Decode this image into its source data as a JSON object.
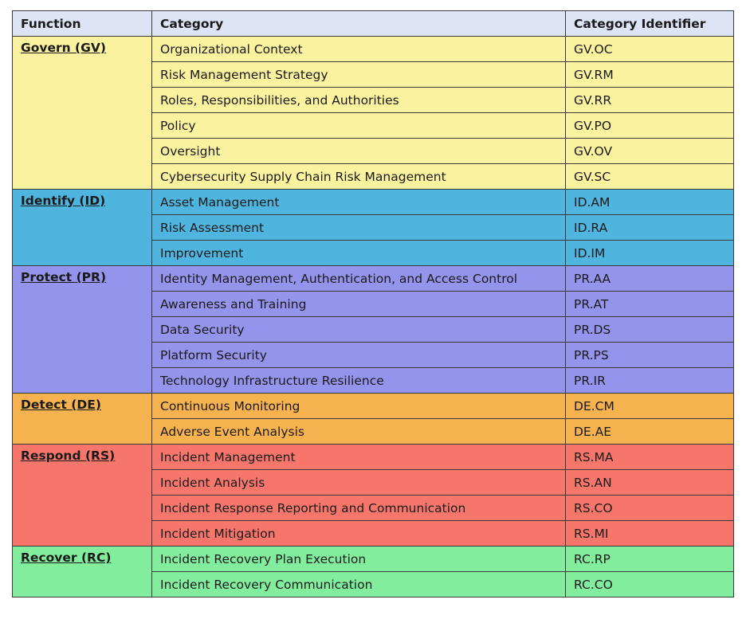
{
  "header": {
    "function": "Function",
    "category": "Category",
    "identifier": "Category Identifier"
  },
  "functions": [
    {
      "key": "gv",
      "label": "Govern (GV)",
      "color": "#fbf2a0",
      "rows": [
        {
          "category": "Organizational Context",
          "id": "GV.OC"
        },
        {
          "category": "Risk Management Strategy",
          "id": "GV.RM"
        },
        {
          "category": "Roles, Responsibilities, and Authorities",
          "id": "GV.RR"
        },
        {
          "category": "Policy",
          "id": "GV.PO"
        },
        {
          "category": "Oversight",
          "id": "GV.OV"
        },
        {
          "category": "Cybersecurity Supply Chain Risk Management",
          "id": "GV.SC"
        }
      ]
    },
    {
      "key": "id",
      "label": "Identify (ID)",
      "color": "#4fb4de",
      "rows": [
        {
          "category": "Asset Management",
          "id": "ID.AM"
        },
        {
          "category": "Risk Assessment",
          "id": "ID.RA"
        },
        {
          "category": "Improvement",
          "id": "ID.IM"
        }
      ]
    },
    {
      "key": "pr",
      "label": "Protect (PR)",
      "color": "#9494ec",
      "rows": [
        {
          "category": "Identity Management, Authentication, and Access Control",
          "id": "PR.AA"
        },
        {
          "category": "Awareness and Training",
          "id": "PR.AT"
        },
        {
          "category": "Data Security",
          "id": "PR.DS"
        },
        {
          "category": "Platform Security",
          "id": "PR.PS"
        },
        {
          "category": "Technology Infrastructure Resilience",
          "id": "PR.IR"
        }
      ]
    },
    {
      "key": "de",
      "label": "Detect (DE)",
      "color": "#f6b24e",
      "rows": [
        {
          "category": "Continuous Monitoring",
          "id": "DE.CM"
        },
        {
          "category": "Adverse Event Analysis",
          "id": "DE.AE"
        }
      ]
    },
    {
      "key": "rs",
      "label": "Respond (RS)",
      "color": "#f6766b",
      "rows": [
        {
          "category": "Incident Management",
          "id": "RS.MA"
        },
        {
          "category": "Incident Analysis",
          "id": "RS.AN"
        },
        {
          "category": "Incident Response Reporting and Communication",
          "id": "RS.CO"
        },
        {
          "category": "Incident Mitigation",
          "id": "RS.MI"
        }
      ]
    },
    {
      "key": "rc",
      "label": "Recover (RC)",
      "color": "#82ee9d",
      "rows": [
        {
          "category": "Incident Recovery Plan Execution",
          "id": "RC.RP"
        },
        {
          "category": "Incident Recovery Communication",
          "id": "RC.CO"
        }
      ]
    }
  ]
}
